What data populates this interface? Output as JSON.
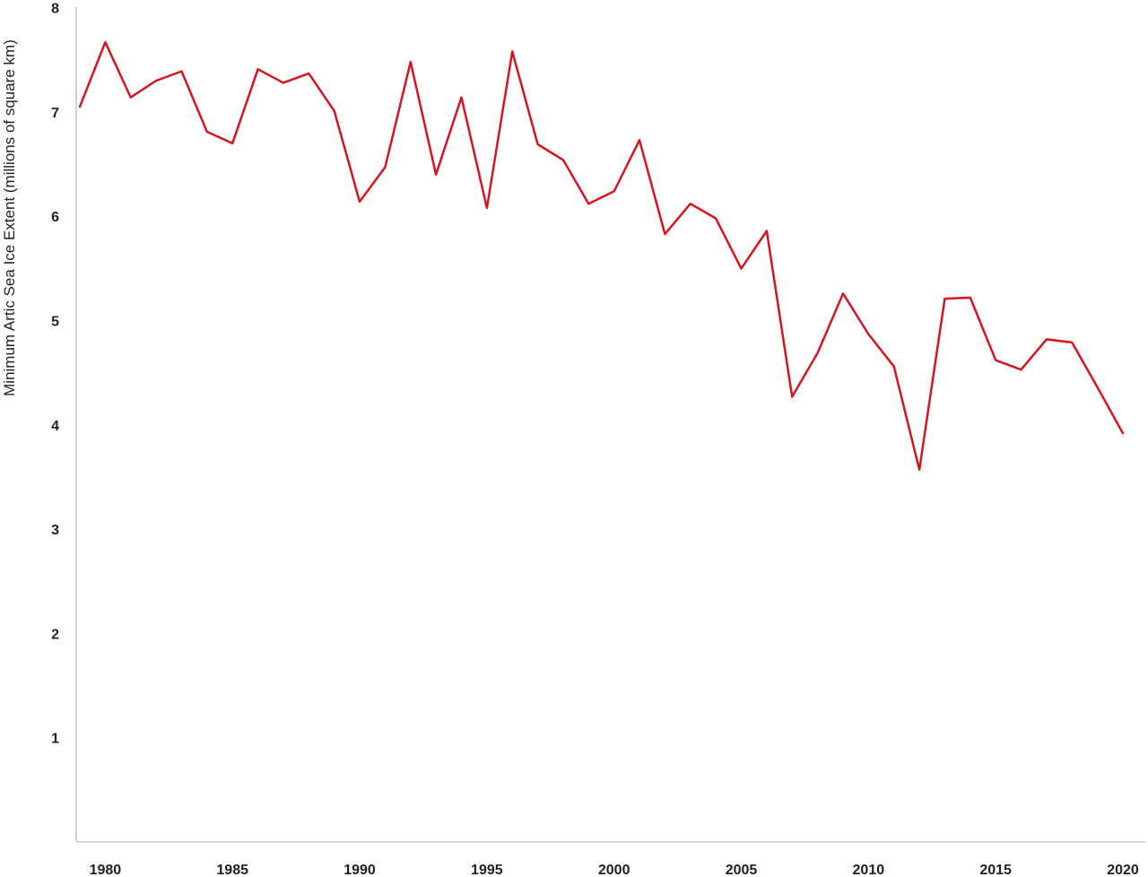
{
  "chart_data": {
    "type": "line",
    "title": "",
    "xlabel": "",
    "ylabel": "Minimum Artic Sea Ice Extent (millions of square km)",
    "xlim": [
      1979,
      2020
    ],
    "ylim": [
      0,
      8
    ],
    "x_ticks": [
      1980,
      1985,
      1990,
      1995,
      2000,
      2005,
      2010,
      2015,
      2020
    ],
    "y_ticks": [
      1,
      2,
      3,
      4,
      5,
      6,
      7,
      8
    ],
    "grid": false,
    "line_color": "#d7141e",
    "axis_color": "#c8c8c8",
    "x": [
      1979,
      1980,
      1981,
      1982,
      1983,
      1984,
      1985,
      1986,
      1987,
      1988,
      1989,
      1990,
      1991,
      1992,
      1993,
      1994,
      1995,
      1996,
      1997,
      1998,
      1999,
      2000,
      2001,
      2002,
      2003,
      2004,
      2005,
      2006,
      2007,
      2008,
      2009,
      2010,
      2011,
      2012,
      2013,
      2014,
      2015,
      2016,
      2017,
      2018,
      2019,
      2020
    ],
    "series": [
      {
        "values": [
          7.05,
          7.67,
          7.14,
          7.3,
          7.39,
          6.81,
          6.7,
          7.41,
          7.28,
          7.37,
          7.01,
          6.14,
          6.47,
          7.48,
          6.4,
          7.14,
          6.08,
          7.58,
          6.69,
          6.54,
          6.12,
          6.24,
          6.73,
          5.83,
          6.12,
          5.98,
          5.5,
          5.86,
          4.27,
          4.69,
          5.26,
          4.87,
          4.56,
          3.57,
          5.21,
          5.22,
          4.62,
          4.53,
          4.82,
          4.79,
          4.36,
          3.92
        ]
      }
    ]
  }
}
